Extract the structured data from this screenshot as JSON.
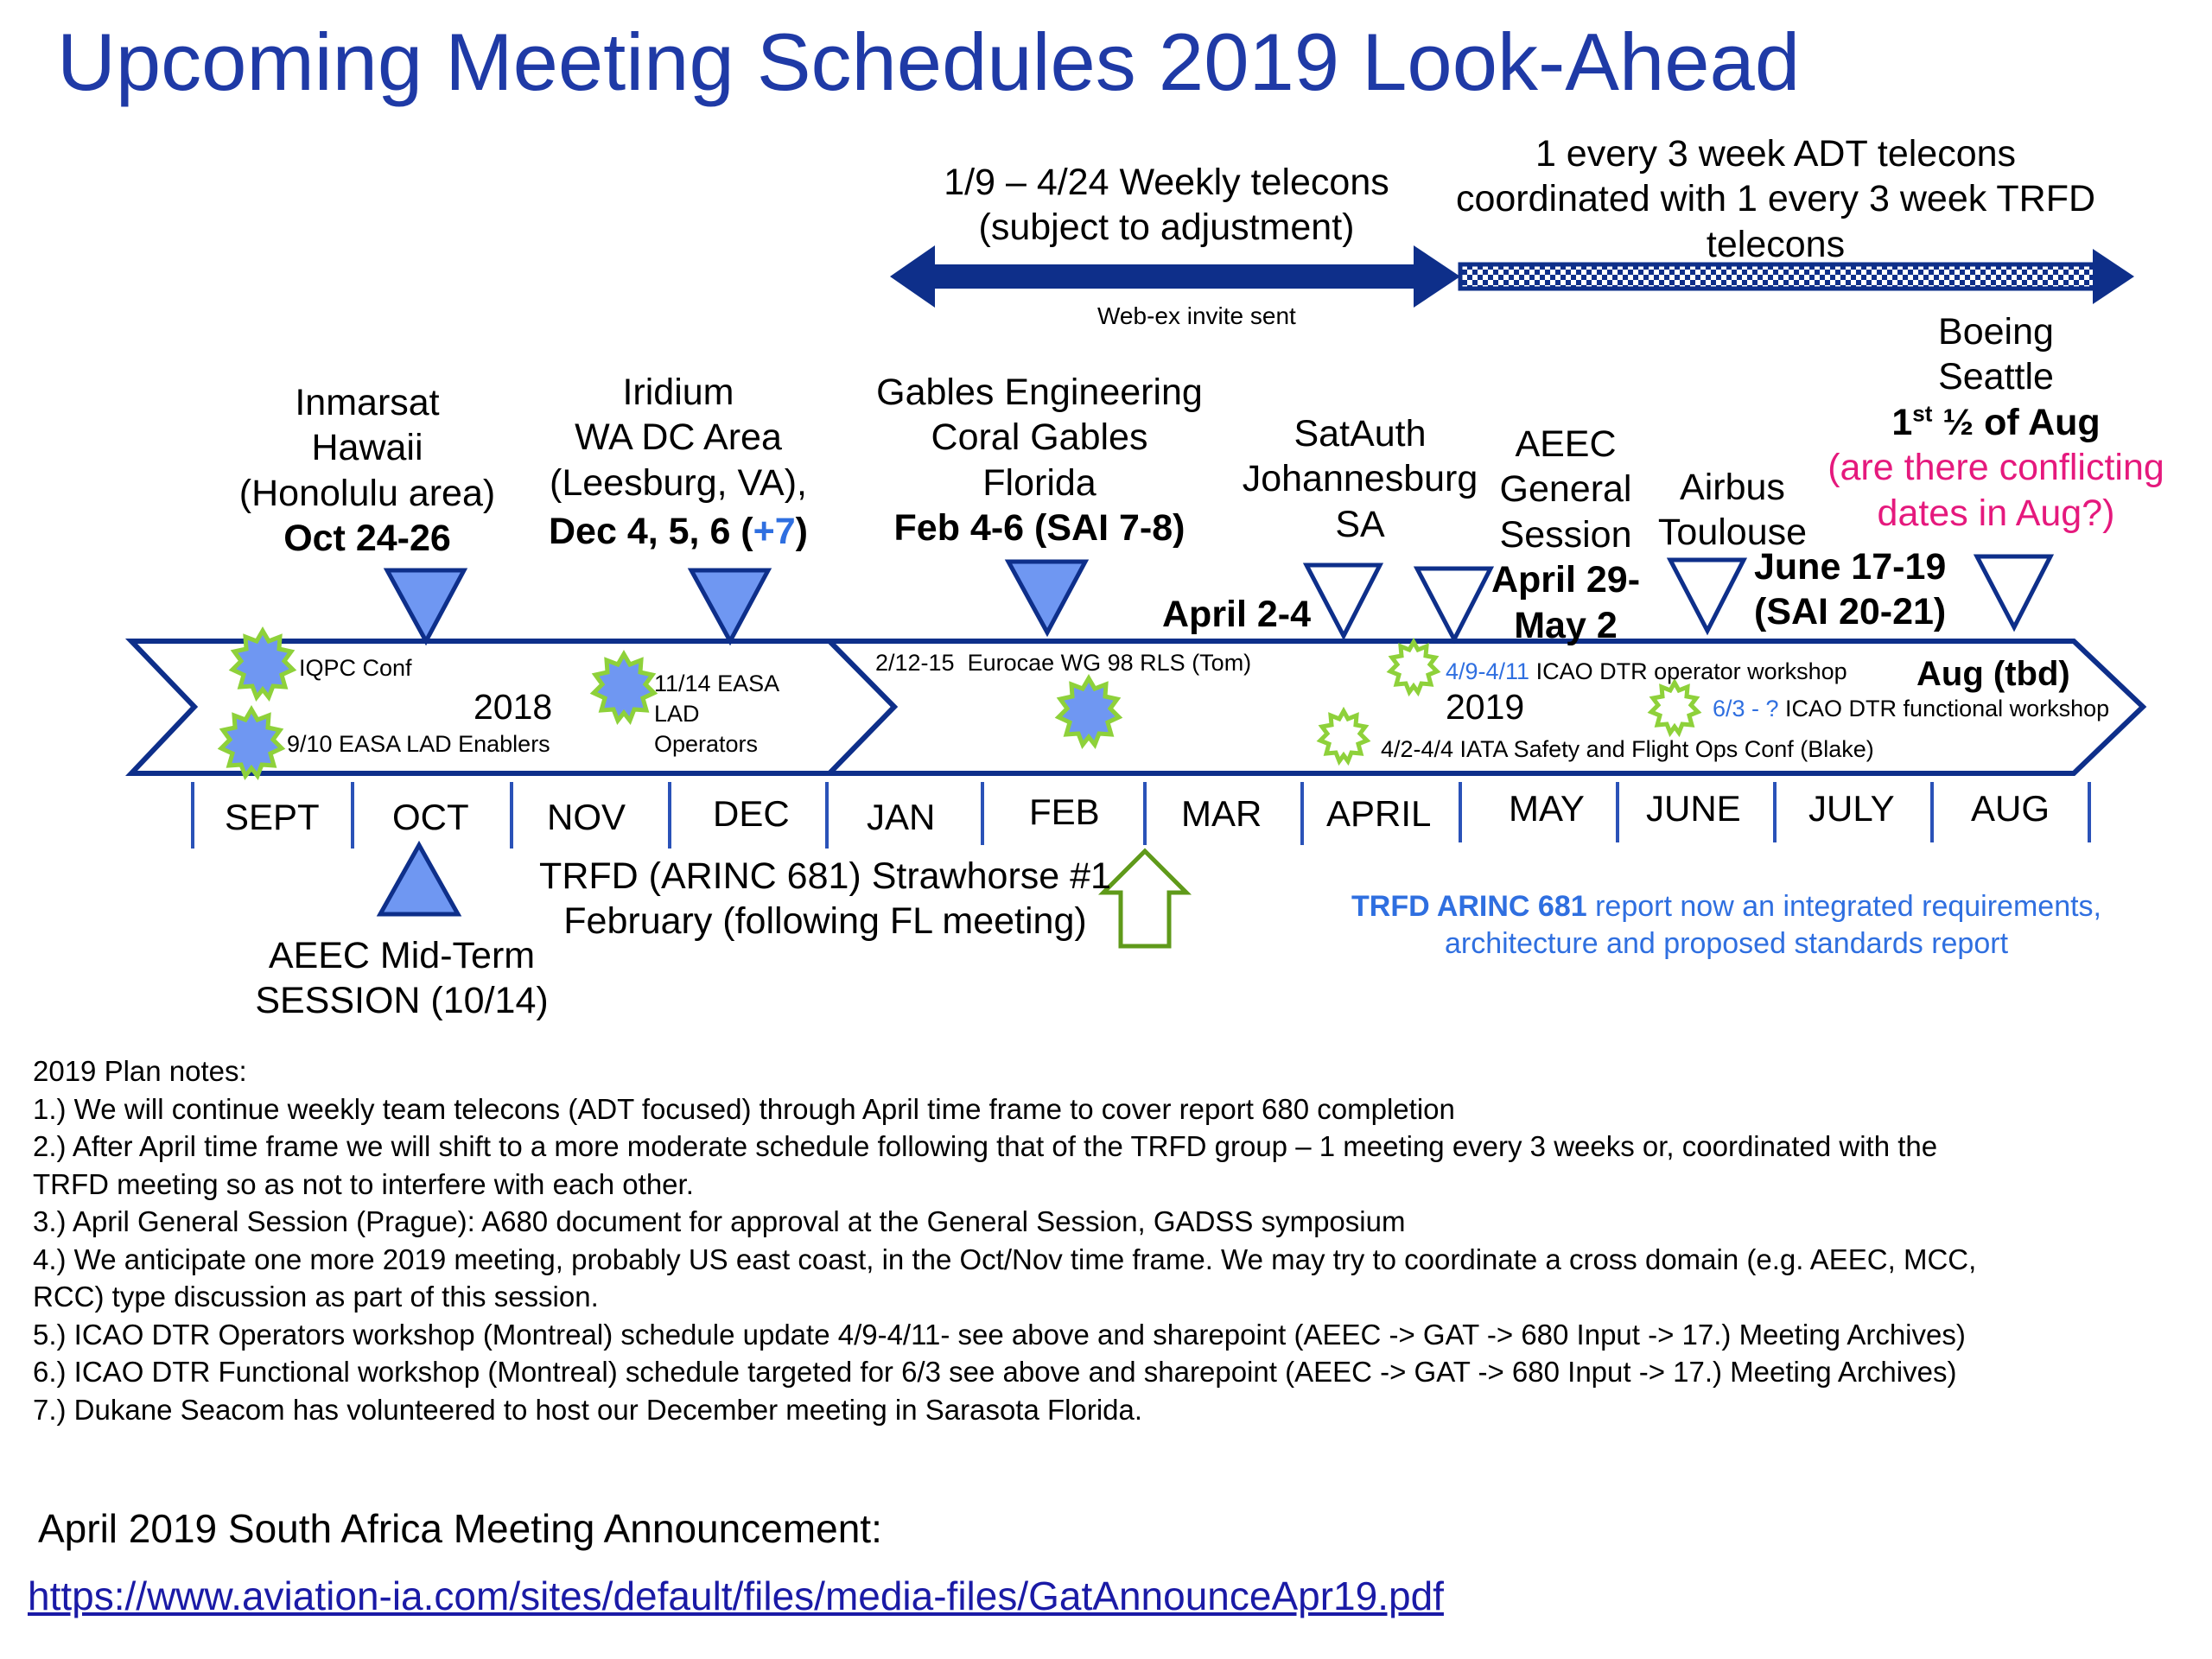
{
  "title": "Upcoming Meeting Schedules 2019 Look-Ahead",
  "colors": {
    "title": "#1f3aa6",
    "navy": "#0e2f8a",
    "marker_fill": "#6f97f2",
    "green": "#5f9a1a",
    "star": "#8ed13a",
    "link_blue": "#2f6fe0",
    "pink": "#e5197d"
  },
  "telecons": {
    "weekly_line1": "1/9 – 4/24 Weekly telecons",
    "weekly_line2": "(subject to adjustment)",
    "adt_line1": "1 every 3 week ADT telecons",
    "adt_line2": "coordinated with 1 every 3 week TRFD",
    "adt_line3": "telecons",
    "webex": "Web-ex invite sent"
  },
  "meetings": {
    "inmarsat": {
      "line1": "Inmarsat",
      "line2": "Hawaii",
      "line3": "(Honolulu area)",
      "date": "Oct 24-26"
    },
    "iridium": {
      "line1": "Iridium",
      "line2": "WA DC Area",
      "line3": "(Leesburg, VA),",
      "date_prefix": "Dec 4, 5, 6 (",
      "date_extra": "+7",
      "date_suffix": ")"
    },
    "gables": {
      "line1": "Gables Engineering",
      "line2": "Coral Gables",
      "line3": "Florida",
      "date": "Feb 4-6 (SAI 7-8)"
    },
    "satauth": {
      "line1": "SatAuth",
      "line2": "Johannesburg",
      "line3": "SA",
      "date": "April 2-4"
    },
    "aeec_gs": {
      "line1": "AEEC",
      "line2": "General",
      "line3": "Session",
      "date1": "April 29-",
      "date2": "May 2"
    },
    "airbus": {
      "line1": "Airbus",
      "line2": "Toulouse",
      "date1": "June 17-19",
      "date2": "(SAI 20-21)"
    },
    "boeing": {
      "line1": "Boeing",
      "line2": "Seattle",
      "date_a": "1",
      "date_sup": "st",
      "date_b": " ½ of Aug",
      "note1": "(are there conflicting",
      "note2": "dates in Aug?)"
    },
    "aeec_mid": {
      "line1": "AEEC Mid-Term",
      "line2": "SESSION (10/14)"
    }
  },
  "years": {
    "y2018": "2018",
    "y2019": "2019"
  },
  "events": {
    "iqpc": "IQPC Conf",
    "easa_lad": "9/10 EASA LAD Enablers",
    "easa_ops1": "11/14 EASA",
    "easa_ops2": "LAD",
    "easa_ops3": "Operators",
    "eurocae": "2/12-15  Eurocae WG 98 RLS (Tom)",
    "icao_op_date": "4/9-4/11",
    "icao_op_text": " ICAO DTR operator workshop",
    "icao_fn_date": "6/3 - ?",
    "icao_fn_text": " ICAO DTR functional workshop",
    "iata": "4/2-4/4 IATA Safety and Flight Ops Conf (Blake)",
    "aug": "Aug (tbd)"
  },
  "months": [
    "SEPT",
    "OCT",
    "NOV",
    "DEC",
    "JAN",
    "FEB",
    "MAR",
    "APRIL",
    "MAY",
    "JUNE",
    "JULY",
    "AUG"
  ],
  "strawhorse": {
    "line1": "TRFD (ARINC 681) Strawhorse #1",
    "line2": "February  (following FL meeting)"
  },
  "trfd_report": {
    "bold": "TRFD ARINC 681",
    "line1_rest": " report now an integrated requirements,",
    "line2": "architecture and proposed standards report"
  },
  "notes": [
    "2019 Plan notes:",
    "1.) We will continue weekly team telecons (ADT focused) through April time frame to cover report 680 completion",
    "2.) After April time frame we will shift to a more moderate schedule following that of the TRFD group – 1 meeting every 3 weeks or, coordinated with the",
    "TRFD meeting so as not to interfere with each other.",
    "3.) April General Session (Prague): A680 document for approval at the General Session, GADSS symposium",
    "4.) We anticipate one more 2019 meeting, probably US east coast,  in the Oct/Nov time frame. We may try to coordinate a cross domain (e.g. AEEC, MCC,",
    "RCC) type discussion as part of this session.",
    "5.) ICAO DTR Operators workshop (Montreal) schedule update 4/9-4/11- see above and sharepoint (AEEC -> GAT -> 680 Input -> 17.) Meeting Archives)",
    "6.) ICAO DTR Functional workshop (Montreal) schedule targeted for 6/3 see above and sharepoint (AEEC -> GAT -> 680 Input -> 17.) Meeting Archives)",
    "7.) Dukane Seacom has volunteered to host our December meeting in Sarasota Florida."
  ],
  "announcement": "April 2019 South Africa Meeting Announcement:",
  "link": "https://www.aviation-ia.com/sites/default/files/media-files/GatAnnounceApr19.pdf"
}
